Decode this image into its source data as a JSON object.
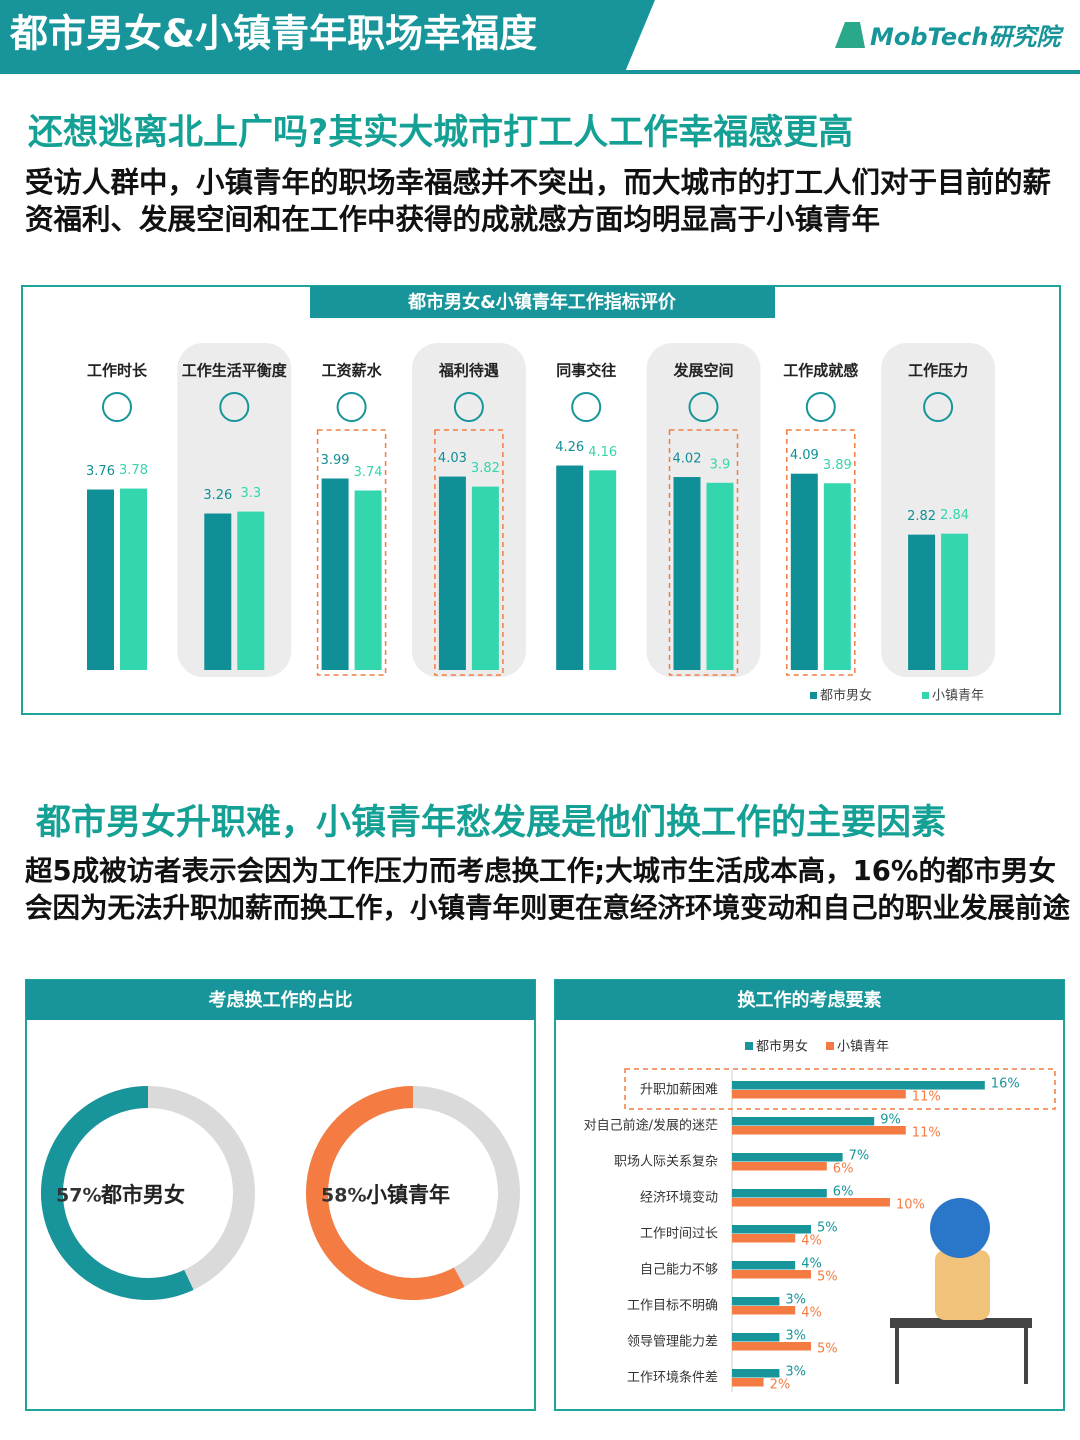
{
  "header": {
    "title": "都市男女&小镇青年职场幸福度",
    "brand": "MobTech研究院"
  },
  "section1": {
    "heading": "还想逃离北上广吗?其实大城市打工人工作幸福感更高",
    "text": "受访人群中，小镇青年的职场幸福感并不突出，而大城市的打工人们对于目前的薪资福利、发展空间和在工作中获得的成就感方面均明显高于小镇青年"
  },
  "section2": {
    "heading": "都市男女升职难，小镇青年愁发展是他们换工作的主要因素",
    "text": "超5成被访者表示会因为工作压力而考虑换工作;大城市生活成本高，16%的都市男女会因为无法升职加薪而换工作，小镇青年则更在意经济环境变动和自己的职业发展前途"
  },
  "chart_data": [
    {
      "type": "bar",
      "title": "都市男女&小镇青年工作指标评价",
      "categories": [
        "工作时长",
        "工作生活平衡度",
        "工资薪水",
        "福利待遇",
        "同事交往",
        "发展空间",
        "工作成就感",
        "工作压力"
      ],
      "series": [
        {
          "name": "都市男女",
          "color": "#108f96",
          "values": [
            3.76,
            3.26,
            3.99,
            4.03,
            4.26,
            4.02,
            4.09,
            2.82
          ]
        },
        {
          "name": "小镇青年",
          "color": "#33d6ad",
          "values": [
            3.78,
            3.3,
            3.74,
            3.82,
            4.16,
            3.9,
            3.89,
            2.84
          ]
        }
      ],
      "highlight": [
        2,
        3,
        5,
        6
      ],
      "legend": "bottom-right"
    },
    {
      "type": "donut",
      "title": "考虑换工作的占比",
      "categories": [
        "都市男女",
        "小镇青年"
      ],
      "values": [
        57,
        58
      ],
      "value_labels": [
        "57%",
        "58%"
      ],
      "colors": [
        "#17959a",
        "#f47c42"
      ]
    },
    {
      "type": "barh",
      "title": "换工作的考虑要素",
      "categories": [
        "升职加薪困难",
        "对自己前途/发展的迷茫",
        "职场人际关系复杂",
        "经济环境变动",
        "工作时间过长",
        "自己能力不够",
        "工作目标不明确",
        "领导管理能力差",
        "工作环境条件差"
      ],
      "series": [
        {
          "name": "都市男女",
          "color": "#17959a",
          "values": [
            16,
            9,
            7,
            6,
            5,
            4,
            3,
            3,
            3
          ],
          "value_labels": [
            "16%",
            "9%",
            "7%",
            "6%",
            "5%",
            "4%",
            "3%",
            "3%",
            "3%"
          ]
        },
        {
          "name": "小镇青年",
          "color": "#f47c42",
          "values": [
            11,
            11,
            6,
            10,
            4,
            5,
            4,
            5,
            2
          ],
          "value_labels": [
            "11%",
            "11%",
            "6%",
            "10%",
            "4%",
            "5%",
            "4%",
            "5%",
            "2%"
          ]
        }
      ],
      "highlight": [
        0
      ],
      "legend": "top"
    }
  ]
}
